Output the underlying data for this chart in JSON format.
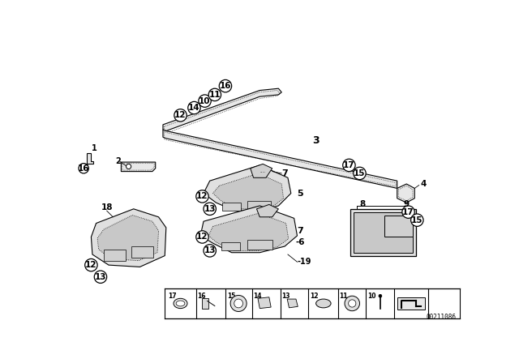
{
  "bg_color": "#ffffff",
  "line_color": "#000000",
  "diagram_id": "00211086",
  "bubble_color": "#ffffff",
  "bubble_edge": "#000000",
  "strip_color": "#e8e8e8",
  "strip_inner": "#d0d0d0",
  "console_color": "#e0e0e0",
  "console_inner": "#c8c8c8"
}
